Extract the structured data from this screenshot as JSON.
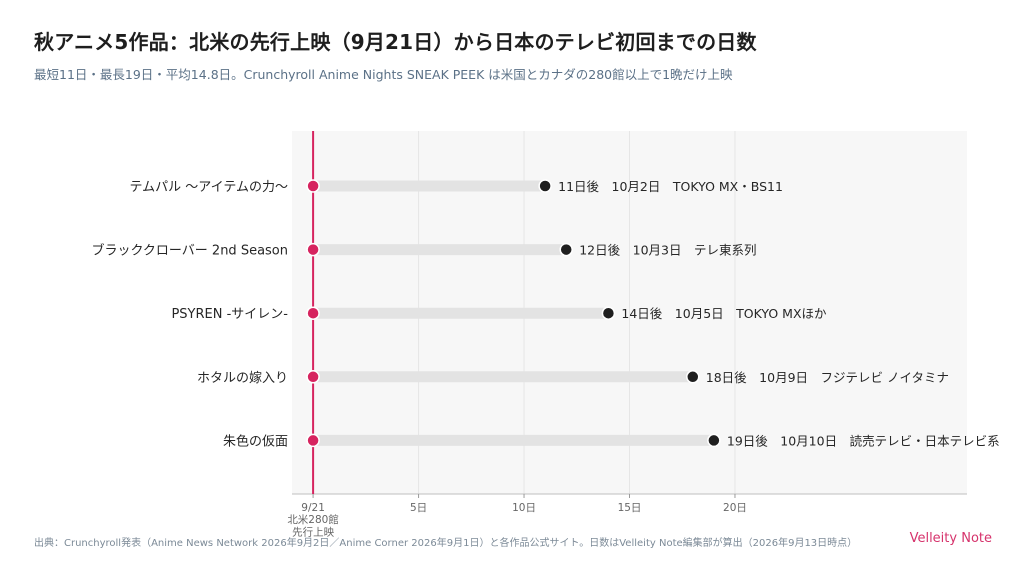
{
  "title": "秋アニメ5作品：北米の先行上映（9月21日）から日本のテレビ初回までの日数",
  "subtitle": "最短11日・最長19日・平均14.8日。Crunchyroll Anime Nights SNEAK PEEK は米国とカナダの280館以上で1晩だけ上映",
  "source": "出典：Crunchyroll発表（Anime News Network 2026年9月2日／Anime Corner 2026年9月1日）と各作品公式サイト。日数はVelleity Note編集部が算出（2026年9月13日時点）",
  "brand": "Velleity Note",
  "colors": {
    "accent": "#d6245f",
    "dot": "#1f1f1f",
    "track": "#e3e3e3",
    "plot_bg": "#f7f7f7",
    "grid": "#e6e6e6"
  },
  "chart_data": {
    "type": "dumbbell",
    "xlim": [
      -1,
      31
    ],
    "x_ticks": [
      {
        "value": 0,
        "label": "9/21"
      },
      {
        "value": 5,
        "label": "5日"
      },
      {
        "value": 10,
        "label": "10日"
      },
      {
        "value": 15,
        "label": "15日"
      },
      {
        "value": 20,
        "label": "20日"
      }
    ],
    "reference_line": {
      "value": 0,
      "label_lines": [
        "北米280館",
        "先行上映"
      ]
    },
    "categories": [
      "テムパル 〜アイテムの力〜",
      "ブラッククローバー 2nd Season",
      "PSYREN -サイレン-",
      "ホタルの嫁入り",
      "朱色の仮面"
    ],
    "start": [
      0,
      0,
      0,
      0,
      0
    ],
    "values": [
      11,
      12,
      14,
      18,
      19
    ],
    "data_labels": [
      "11日後　10月2日　TOKYO MX・BS11",
      "12日後　10月3日　テレ東系列",
      "14日後　10月5日　TOKYO MXほか",
      "18日後　10月9日　フジテレビ ノイタミナ",
      "19日後　10月10日　読売テレビ・日本テレビ系"
    ]
  }
}
